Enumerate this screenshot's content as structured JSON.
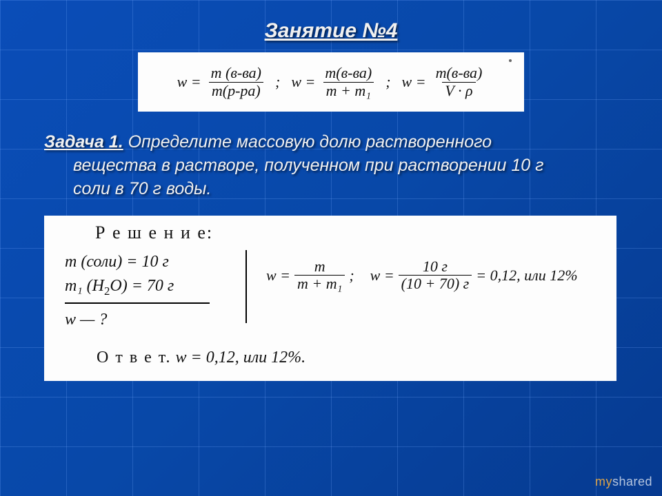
{
  "colors": {
    "bg_gradient_from": "#0a4db8",
    "bg_gradient_to": "#063a90",
    "grid_line": "rgba(120,170,255,0.25)",
    "text_light": "#f0f0f0",
    "paper_bg": "#fdfdfd",
    "ink": "#111111"
  },
  "title": "Занятие №4",
  "formulas": {
    "f1": {
      "lhs": "w",
      "num": "m (в-ва)",
      "den": "m(р-ра)"
    },
    "f2": {
      "lhs": "w",
      "num": "m(в-ва)",
      "den": "m + m₁"
    },
    "f3": {
      "lhs": "w",
      "num": "m(в-ва)",
      "den": "V · ρ"
    },
    "sep": ";"
  },
  "problem": {
    "label": "Задача 1.",
    "line1": " Определите массовую долю растворенного",
    "line2": "вещества в растворе, полученном при растворении 10 г",
    "line3": "соли в 70 г воды."
  },
  "solution": {
    "heading": "Р е ш е н и е:",
    "given": {
      "row1_a": "m (соли) = ",
      "row1_b": "10 г",
      "row2_a": "m₁ (H",
      "row2_sub": "2",
      "row2_b": "O) = ",
      "row2_c": "70 г",
      "unknown": "w — ?"
    },
    "calc": {
      "p1_lhs": "w =",
      "p1_num": "m",
      "p1_den": "m + m₁",
      "sep": ";",
      "p2_lhs": "w =",
      "p2_num": "10 г",
      "p2_den": "(10 + 70) г",
      "result": "= 0,12, или 12%"
    },
    "answer_label": "О т в е т.",
    "answer_value": " w = 0,12, или 12%."
  },
  "watermark": {
    "a": "my",
    "b": "shared"
  }
}
